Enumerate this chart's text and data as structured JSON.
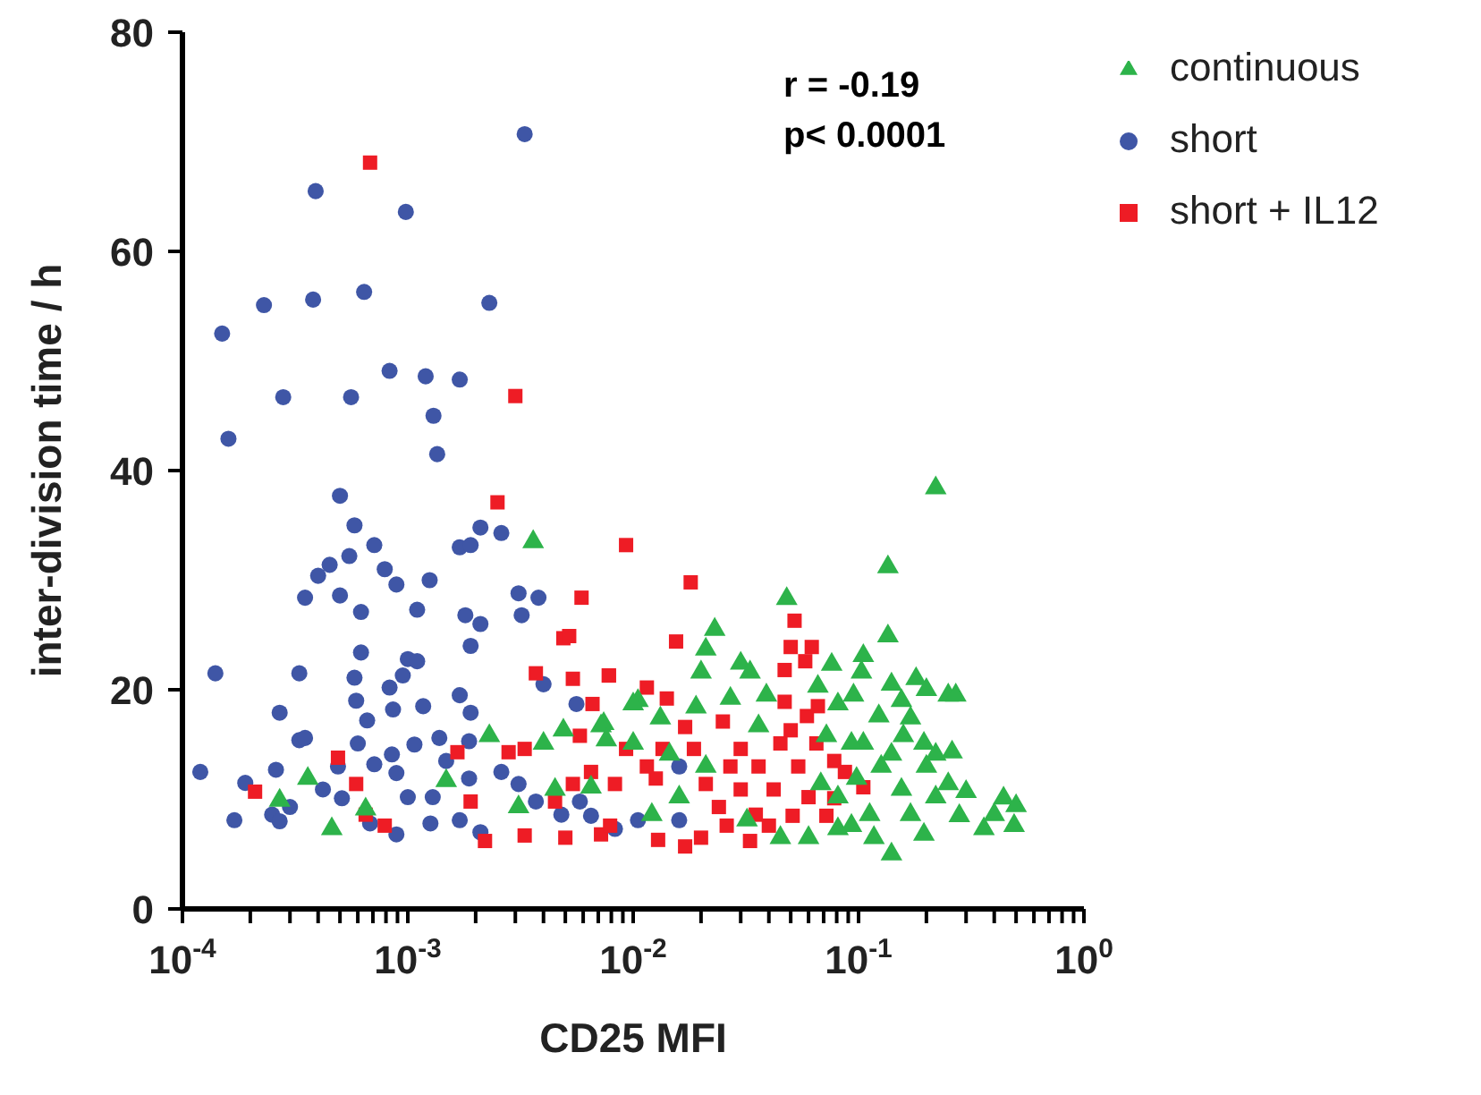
{
  "chart_data": {
    "type": "scatter",
    "xlabel": "CD25 MFI",
    "ylabel": "inter-division time / h",
    "log": "x",
    "grid": false,
    "legend": "top right",
    "xlim": [
      0.0001,
      1
    ],
    "ylim": [
      0,
      80
    ],
    "yticks": [
      0,
      20,
      40,
      60,
      80
    ],
    "xticks": [
      {
        "value": 0.0001,
        "label": "10$^{-4}$"
      },
      {
        "value": 0.0002,
        "label": null
      },
      {
        "value": 0.0003,
        "label": null
      },
      {
        "value": 0.0004,
        "label": null
      },
      {
        "value": 0.0005,
        "label": null
      },
      {
        "value": 0.0006,
        "label": null
      },
      {
        "value": 0.0007,
        "label": null
      },
      {
        "value": 0.0008,
        "label": null
      },
      {
        "value": 0.0009,
        "label": null
      },
      {
        "value": 0.001,
        "label": "10$^{-3}$"
      },
      {
        "value": 0.002,
        "label": null
      },
      {
        "value": 0.003,
        "label": null
      },
      {
        "value": 0.004,
        "label": null
      },
      {
        "value": 0.005,
        "label": null
      },
      {
        "value": 0.006,
        "label": null
      },
      {
        "value": 0.007,
        "label": null
      },
      {
        "value": 0.008,
        "label": null
      },
      {
        "value": 0.009,
        "label": null
      },
      {
        "value": 0.01,
        "label": "10$^{-2}$"
      },
      {
        "value": 0.02,
        "label": null
      },
      {
        "value": 0.03,
        "label": null
      },
      {
        "value": 0.04,
        "label": null
      },
      {
        "value": 0.05,
        "label": null
      },
      {
        "value": 0.06,
        "label": null
      },
      {
        "value": 0.07,
        "label": null
      },
      {
        "value": 0.08,
        "label": null
      },
      {
        "value": 0.09,
        "label": null
      },
      {
        "value": 0.1,
        "label": "10$^{-1}$"
      },
      {
        "value": 0.2,
        "label": null
      },
      {
        "value": 0.3,
        "label": null
      },
      {
        "value": 0.4,
        "label": null
      },
      {
        "value": 0.5,
        "label": null
      },
      {
        "value": 0.6,
        "label": null
      },
      {
        "value": 0.7,
        "label": null
      },
      {
        "value": 0.8,
        "label": null
      },
      {
        "value": 0.9,
        "label": null
      },
      {
        "value": 1,
        "label": "10$^{0}$"
      }
    ],
    "annotations": [
      "r = -0.19",
      "p< 0.0001"
    ],
    "series": [
      {
        "name": "short",
        "color": "#3f56a6",
        "marker": "circle",
        "x": [
          0.0033,
          0.00039,
          0.00098,
          0.00023,
          0.00038,
          0.00064,
          0.0023,
          0.00015,
          0.00083,
          0.0012,
          0.0017,
          0.00028,
          0.00056,
          0.0013,
          0.00016,
          0.00135,
          0.0005,
          0.00058,
          0.0021,
          0.0026,
          0.00071,
          0.00055,
          0.0017,
          0.0019,
          0.00045,
          0.0004,
          0.00035,
          0.0005,
          0.00079,
          0.00089,
          0.00125,
          0.0011,
          0.00062,
          0.0018,
          0.0021,
          0.0031,
          0.0038,
          0.0032,
          0.0019,
          0.00062,
          0.001,
          0.0011,
          0.00014,
          0.00033,
          0.00058,
          0.00095,
          0.00083,
          0.0017,
          0.004,
          0.00027,
          0.00059,
          0.00086,
          0.00117,
          0.0019,
          0.00066,
          0.00033,
          0.00035,
          0.0006,
          0.00107,
          0.00138,
          0.00187,
          0.0056,
          0.00012,
          0.00019,
          0.00026,
          0.00071,
          0.00085,
          0.00049,
          0.00042,
          0.00051,
          0.0003,
          0.00017,
          0.00025,
          0.00027,
          0.00089,
          0.001,
          0.00129,
          0.00126,
          0.00089,
          0.00068,
          0.00148,
          0.00187,
          0.0017,
          0.0021,
          0.0026,
          0.0031,
          0.0037,
          0.0048,
          0.0065,
          0.0083,
          0.0058,
          0.016,
          0.016,
          0.0105
        ],
        "values": [
          70.7,
          65.5,
          63.6,
          55.1,
          55.6,
          56.3,
          55.3,
          52.5,
          49.1,
          48.6,
          48.3,
          46.7,
          46.7,
          45.0,
          42.9,
          41.5,
          37.7,
          35,
          34.8,
          34.3,
          33.2,
          32.2,
          33,
          33.2,
          31.4,
          30.4,
          28.4,
          28.6,
          31,
          29.6,
          30,
          27.3,
          27.1,
          26.8,
          26,
          28.8,
          28.4,
          26.8,
          24,
          23.4,
          22.8,
          22.6,
          21.5,
          21.5,
          21.1,
          21.3,
          20.2,
          19.5,
          20.5,
          17.9,
          19,
          18.2,
          18.5,
          17.9,
          17.2,
          15.4,
          15.6,
          15.1,
          15,
          15.6,
          15.3,
          18.7,
          12.5,
          11.5,
          12.7,
          13.2,
          14.1,
          13,
          10.9,
          10.1,
          9.3,
          8.1,
          8.6,
          8,
          12.4,
          10.2,
          10.2,
          7.8,
          6.8,
          7.8,
          13.5,
          11.9,
          8.1,
          7,
          12.5,
          11.4,
          9.8,
          8.6,
          8.5,
          7.3,
          9.8,
          13,
          8.1,
          8.1
        ]
      },
      {
        "name": "short + IL12",
        "color": "#ee1c25",
        "marker": "square",
        "x": [
          0.00068,
          0.003,
          0.0025,
          0.0093,
          0.00021,
          0.00049,
          0.00059,
          0.00065,
          0.00079,
          0.00166,
          0.0022,
          0.0033,
          0.0059,
          0.0049,
          0.0052,
          0.0037,
          0.0054,
          0.0078,
          0.0066,
          0.0028,
          0.0033,
          0.005,
          0.0072,
          0.0054,
          0.0045,
          0.0065,
          0.0058,
          0.0019,
          0.018,
          0.0155,
          0.0078,
          0.0115,
          0.0141,
          0.052,
          0.05,
          0.062,
          0.058,
          0.047,
          0.047,
          0.066,
          0.059,
          0.025,
          0.017,
          0.0135,
          0.0093,
          0.0186,
          0.03,
          0.045,
          0.05,
          0.065,
          0.027,
          0.036,
          0.054,
          0.078,
          0.087,
          0.105,
          0.021,
          0.03,
          0.042,
          0.06,
          0.078,
          0.024,
          0.035,
          0.051,
          0.072,
          0.0126,
          0.0115,
          0.0083,
          0.0079,
          0.0129,
          0.017,
          0.02,
          0.033,
          0.026,
          0.04
        ],
        "values": [
          68.1,
          46.8,
          37.1,
          33.2,
          10.7,
          13.8,
          11.4,
          8.6,
          7.6,
          14.3,
          6.2,
          6.7,
          28.4,
          24.7,
          24.9,
          21.5,
          21,
          21.3,
          18.7,
          14.3,
          14.6,
          6.5,
          6.8,
          11.4,
          9.8,
          12.5,
          15.8,
          9.8,
          29.8,
          24.4,
          21.3,
          20.2,
          19.2,
          26.3,
          23.9,
          23.9,
          22.6,
          21.8,
          18.9,
          18.5,
          17.6,
          17.1,
          16.6,
          14.6,
          14.6,
          14.6,
          14.6,
          15.1,
          16.3,
          15.1,
          13,
          13,
          13,
          13.5,
          12.5,
          11.1,
          11.4,
          10.9,
          10.9,
          10.2,
          10.1,
          9.3,
          8.6,
          8.5,
          8.5,
          11.9,
          13,
          11.4,
          7.6,
          6.3,
          5.7,
          6.5,
          6.2,
          7.6,
          7.6
        ]
      },
      {
        "name": "continuous",
        "color": "#2db34a",
        "marker": "triangle",
        "x": [
          0.0036,
          0.22,
          0.135,
          0.048,
          0.135,
          0.023,
          0.021,
          0.03,
          0.033,
          0.02,
          0.076,
          0.105,
          0.103,
          0.18,
          0.2,
          0.14,
          0.25,
          0.27,
          0.155,
          0.081,
          0.095,
          0.066,
          0.039,
          0.027,
          0.0105,
          0.0132,
          0.019,
          0.0072,
          0.123,
          0.17,
          0.158,
          0.22,
          0.26,
          0.2,
          0.25,
          0.3,
          0.44,
          0.5,
          0.4,
          0.49,
          0.36,
          0.28,
          0.14,
          0.195,
          0.117,
          0.081,
          0.105,
          0.126,
          0.155,
          0.098,
          0.081,
          0.112,
          0.17,
          0.22,
          0.093,
          0.072,
          0.195,
          0.14,
          0.068,
          0.093,
          0.06,
          0.045,
          0.032,
          0.021,
          0.0145,
          0.01,
          0.016,
          0.036,
          0.0121,
          0.00027,
          0.00036,
          0.00046,
          0.00065,
          0.0023,
          0.004,
          0.0049,
          0.0074,
          0.0076,
          0.01,
          0.00148,
          0.0031,
          0.0045,
          0.0065
        ],
        "values": [
          33.5,
          38.4,
          31.2,
          28.3,
          24.9,
          25.5,
          23.7,
          22.4,
          21.6,
          21.6,
          22.3,
          23.1,
          21.6,
          21,
          20,
          20.5,
          19.5,
          19.5,
          19,
          18.7,
          19.5,
          20.3,
          19.5,
          19.2,
          19,
          17.4,
          18.4,
          16.7,
          17.6,
          17.4,
          15.8,
          14.1,
          14.3,
          13,
          11.4,
          10.7,
          10.1,
          9.4,
          8.6,
          7.6,
          7.3,
          8.5,
          5,
          6.8,
          6.5,
          7.3,
          15.1,
          13,
          10.9,
          11.9,
          10.2,
          8.6,
          8.6,
          10.2,
          15.1,
          15.8,
          15.1,
          14.1,
          11.4,
          7.6,
          6.5,
          6.5,
          8.1,
          13,
          14.1,
          15.1,
          10.2,
          16.7,
          8.6,
          9.9,
          11.9,
          7.3,
          9.1,
          15.8,
          15.1,
          16.3,
          16.9,
          15.4,
          18.7,
          11.7,
          9.3,
          10.9,
          11.1
        ]
      }
    ]
  }
}
